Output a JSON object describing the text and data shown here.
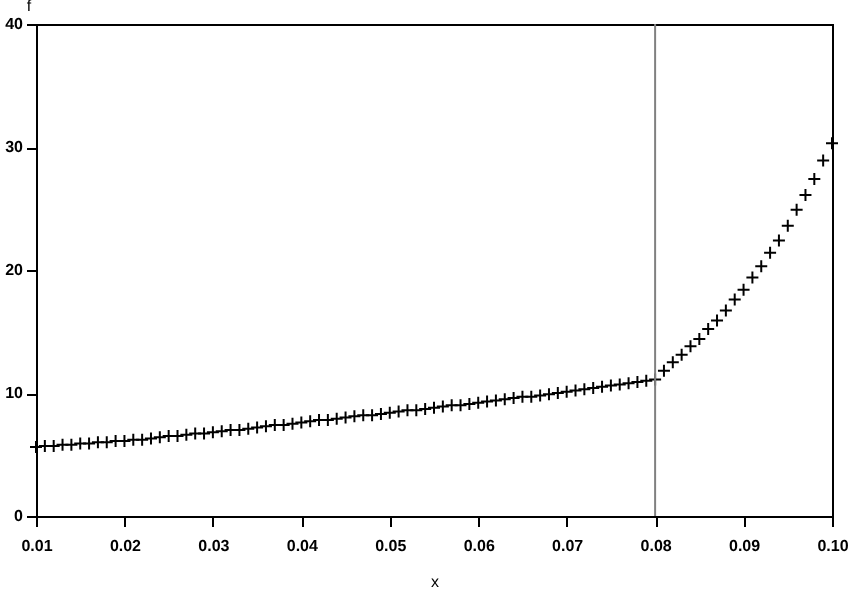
{
  "chart_data": {
    "type": "scatter",
    "xlabel": "x",
    "ylabel": "f",
    "marker": "cross",
    "grid": false,
    "xlim": [
      0.01,
      0.1
    ],
    "ylim": [
      0,
      40
    ],
    "xticks": [
      0.01,
      0.02,
      0.03,
      0.04,
      0.05,
      0.06,
      0.07,
      0.08,
      0.09,
      {
        "value": 0.1,
        "label": "0.10"
      }
    ],
    "yticks": [
      0,
      10,
      20,
      30,
      40
    ],
    "ref_lines": [
      {
        "axis": "x",
        "value": 0.08,
        "color": "#808080"
      }
    ],
    "series": [
      {
        "color": "#000000",
        "x": [
          0.01,
          0.011,
          0.012,
          0.013,
          0.014,
          0.015,
          0.016,
          0.017,
          0.018,
          0.019,
          0.02,
          0.021,
          0.022,
          0.023,
          0.024,
          0.025,
          0.026,
          0.027,
          0.028,
          0.029,
          0.03,
          0.031,
          0.032,
          0.033,
          0.034,
          0.035,
          0.036,
          0.037,
          0.038,
          0.039,
          0.04,
          0.041,
          0.042,
          0.043,
          0.044,
          0.045,
          0.046,
          0.047,
          0.048,
          0.049,
          0.05,
          0.051,
          0.052,
          0.053,
          0.054,
          0.055,
          0.056,
          0.057,
          0.058,
          0.059,
          0.06,
          0.061,
          0.062,
          0.063,
          0.064,
          0.065,
          0.066,
          0.067,
          0.068,
          0.069,
          0.07,
          0.071,
          0.072,
          0.073,
          0.074,
          0.075,
          0.076,
          0.077,
          0.078,
          0.079,
          0.08,
          0.081,
          0.082,
          0.083,
          0.084,
          0.085,
          0.086,
          0.087,
          0.088,
          0.089,
          0.09,
          0.091,
          0.092,
          0.093,
          0.094,
          0.095,
          0.096,
          0.097,
          0.098,
          0.099,
          0.1
        ],
        "values": [
          5.6,
          5.7,
          5.7,
          5.8,
          5.8,
          5.9,
          5.9,
          6.0,
          6.0,
          6.1,
          6.1,
          6.2,
          6.2,
          6.3,
          6.4,
          6.5,
          6.5,
          6.6,
          6.7,
          6.7,
          6.8,
          6.9,
          7.0,
          7.0,
          7.1,
          7.2,
          7.3,
          7.4,
          7.4,
          7.5,
          7.6,
          7.7,
          7.8,
          7.8,
          7.9,
          8.0,
          8.1,
          8.2,
          8.2,
          8.3,
          8.4,
          8.5,
          8.6,
          8.6,
          8.7,
          8.8,
          8.9,
          9.0,
          9.0,
          9.1,
          9.2,
          9.3,
          9.4,
          9.5,
          9.6,
          9.7,
          9.7,
          9.8,
          9.9,
          10.0,
          10.1,
          10.2,
          10.3,
          10.4,
          10.5,
          10.6,
          10.7,
          10.8,
          10.9,
          11.0,
          11.1,
          11.8,
          12.5,
          13.1,
          13.8,
          14.4,
          15.2,
          15.9,
          16.7,
          17.6,
          18.4,
          19.4,
          20.3,
          21.4,
          22.4,
          23.6,
          24.9,
          26.1,
          27.4,
          28.9,
          30.3
        ]
      }
    ]
  }
}
